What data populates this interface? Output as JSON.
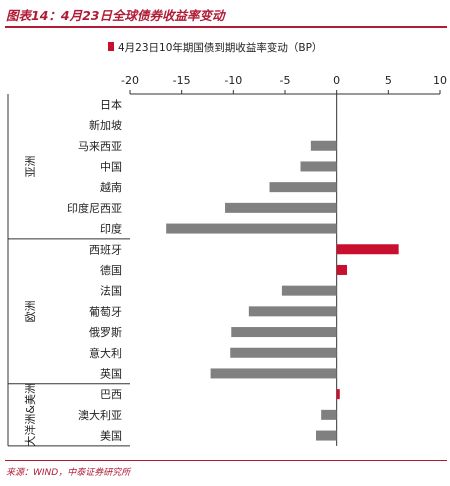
{
  "header": {
    "title": "图表14：4月23日全球债券收益率变动"
  },
  "footer": {
    "source": "来源：WIND，中泰证券研究所"
  },
  "colors": {
    "accent": "#b01c35",
    "positive_bar": "#c8102e",
    "negative_bar": "#808080"
  },
  "chart_data": {
    "type": "bar",
    "orientation": "horizontal",
    "title": "",
    "legend": [
      "4月23日10年期国债到期收益率变动（BP）"
    ],
    "legend_position": "top",
    "xlim": [
      -20,
      10
    ],
    "xticks": [
      -20,
      -15,
      -10,
      -5,
      0,
      5,
      10
    ],
    "groups": [
      {
        "name": "亚洲",
        "categories": [
          "日本",
          "新加坡",
          "马来西亚",
          "中国",
          "越南",
          "印度尼西亚",
          "印度"
        ]
      },
      {
        "name": "欧洲",
        "categories": [
          "西班牙",
          "德国",
          "法国",
          "葡萄牙",
          "俄罗斯",
          "意大利",
          "英国"
        ]
      },
      {
        "name": "大洋洲&美洲",
        "categories": [
          "巴西",
          "澳大利亚",
          "美国"
        ]
      }
    ],
    "categories": [
      "日本",
      "新加坡",
      "马来西亚",
      "中国",
      "越南",
      "印度尼西亚",
      "印度",
      "西班牙",
      "德国",
      "法国",
      "葡萄牙",
      "俄罗斯",
      "意大利",
      "英国",
      "巴西",
      "澳大利亚",
      "美国"
    ],
    "values": [
      0,
      0,
      -2.5,
      -3.5,
      -6.5,
      -10.8,
      -16.5,
      6,
      1,
      -5.3,
      -8.5,
      -10.2,
      -10.3,
      -12.2,
      0.3,
      -1.5,
      -2
    ]
  }
}
